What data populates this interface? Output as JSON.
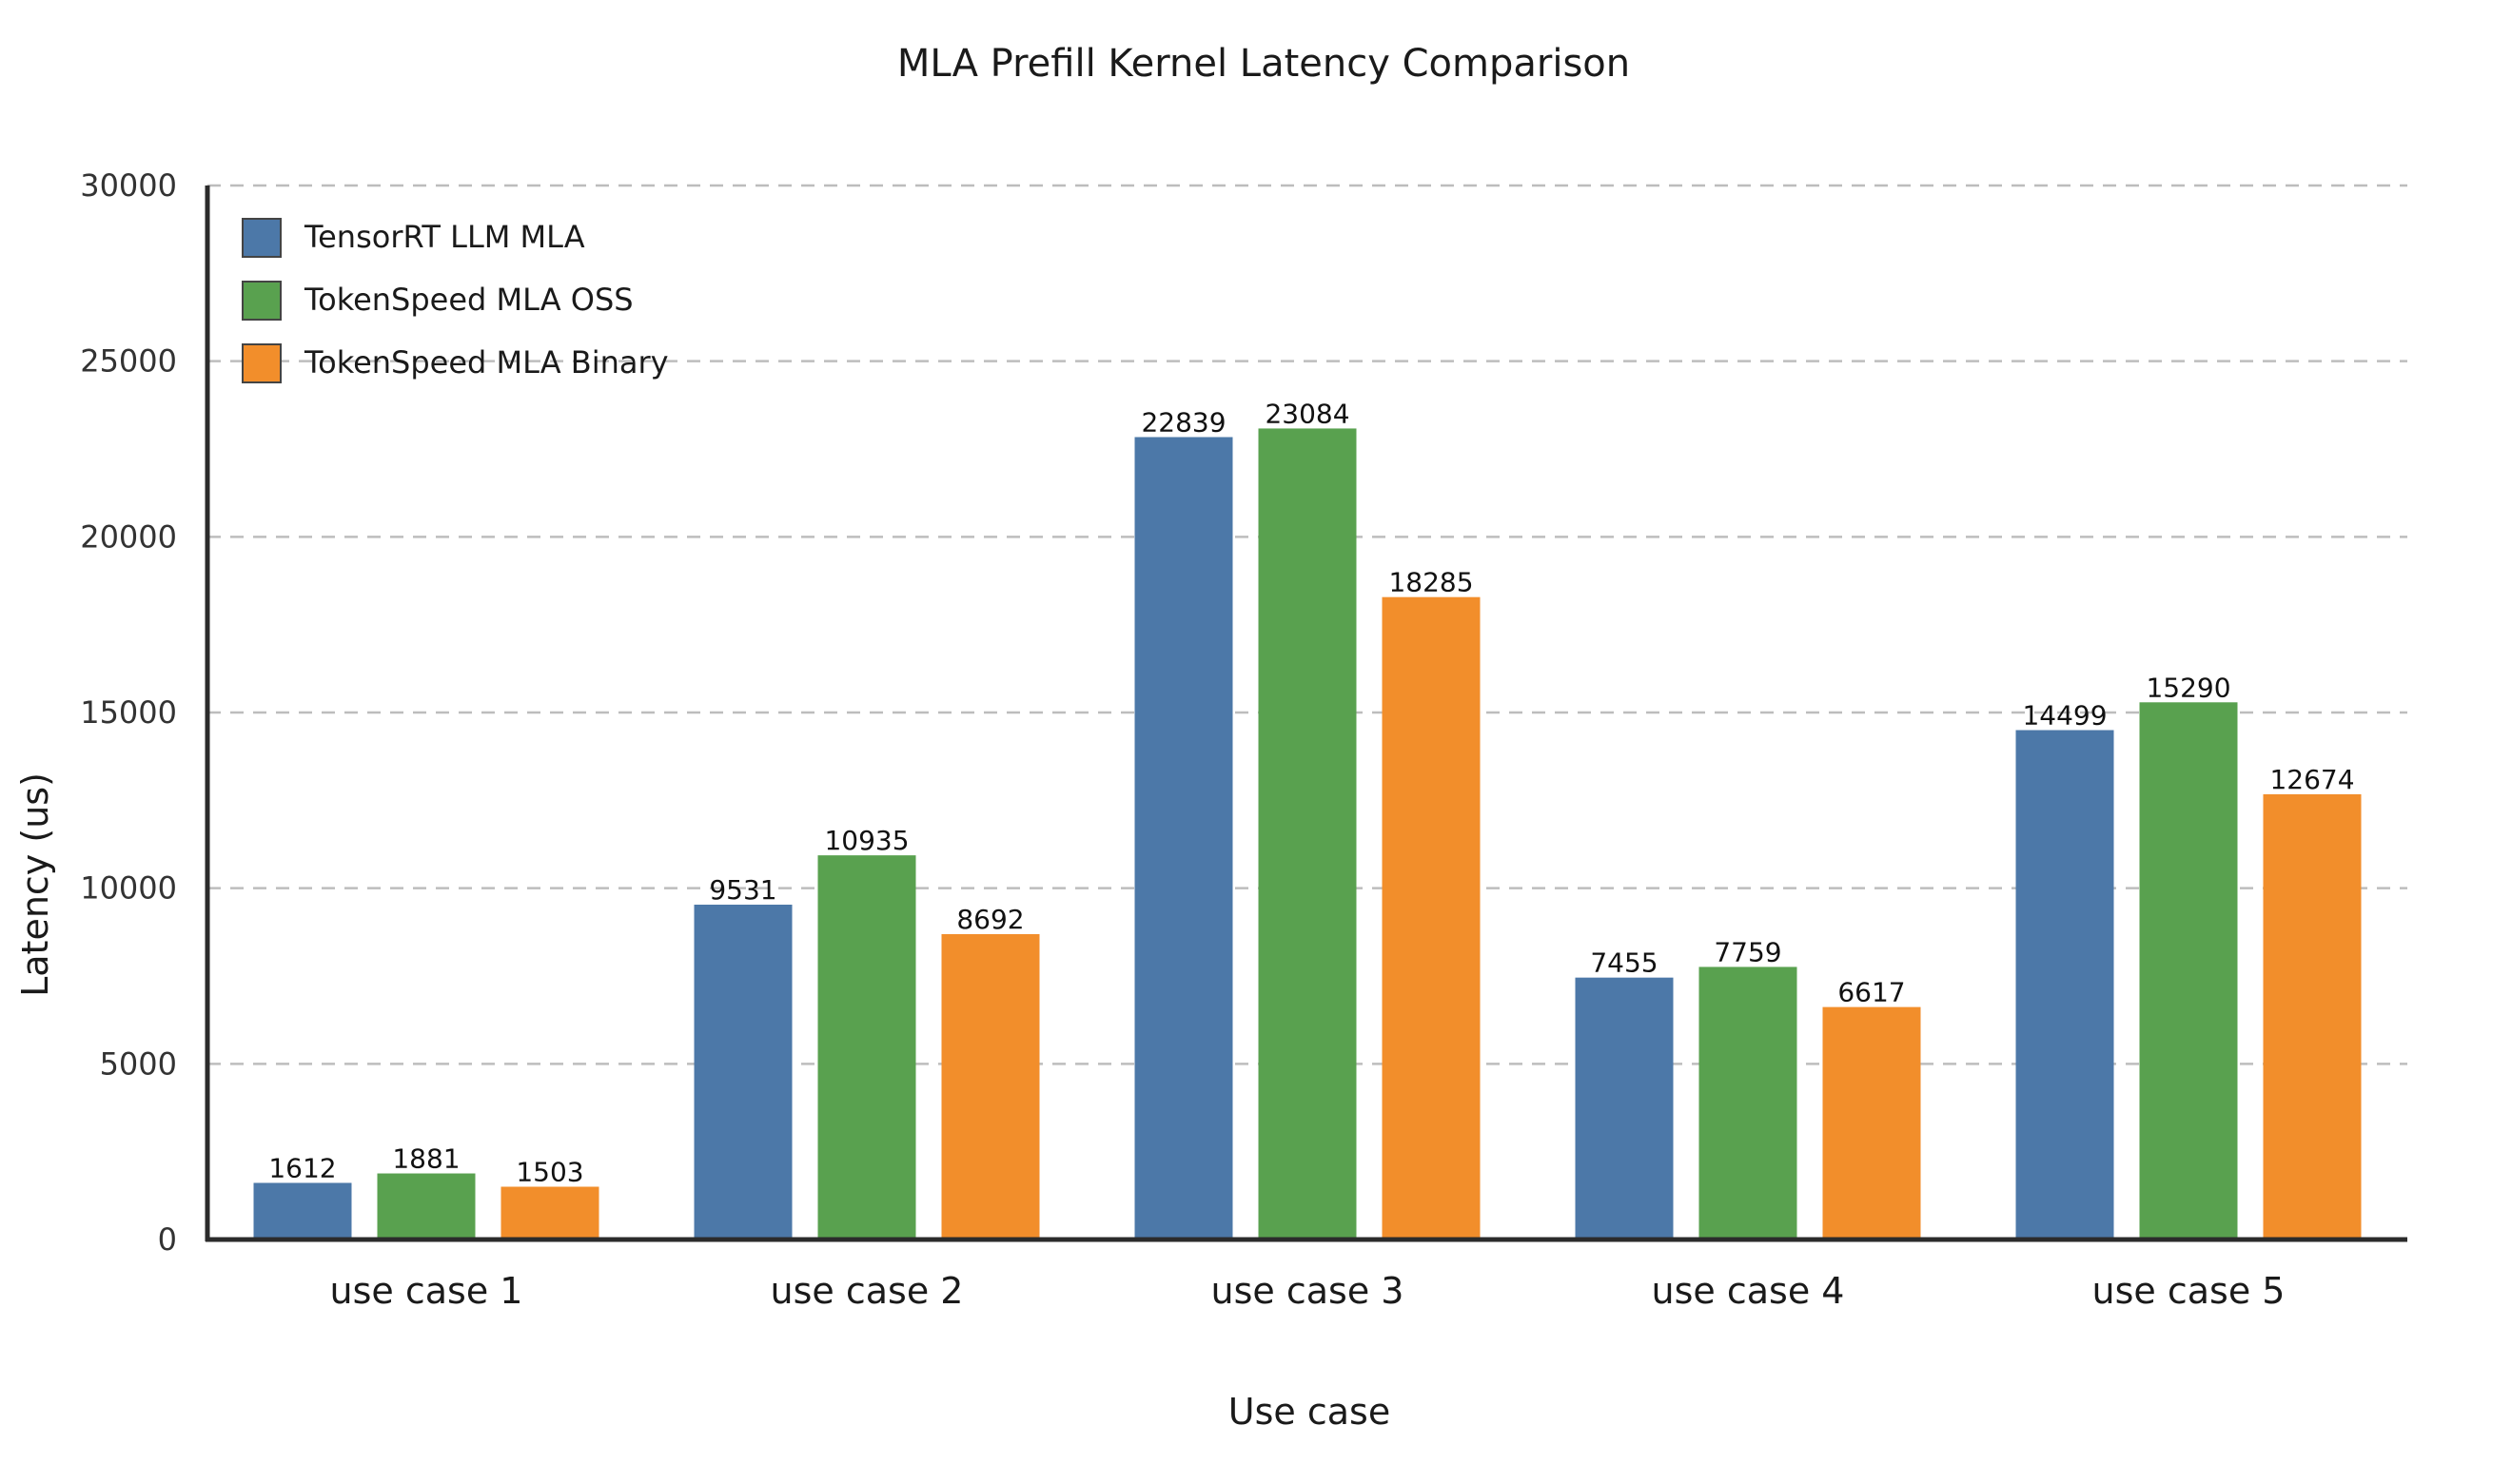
{
  "chart_data": {
    "type": "bar",
    "title": "MLA Prefill Kernel Latency Comparison",
    "xlabel": "Use case",
    "ylabel": "Latency (us)",
    "categories": [
      "use case 1",
      "use case 2",
      "use case 3",
      "use case 4",
      "use case 5"
    ],
    "ylim": [
      0,
      30000
    ],
    "yticks": [
      0,
      5000,
      10000,
      15000,
      20000,
      25000,
      30000
    ],
    "grid": true,
    "legend_position": "top-left",
    "series": [
      {
        "name": "TensorRT LLM MLA",
        "color": "#4c78a8",
        "values": [
          1612,
          9531,
          22839,
          7455,
          14499
        ]
      },
      {
        "name": "TokenSpeed MLA OSS",
        "color": "#59a14f",
        "values": [
          1881,
          10935,
          23084,
          7759,
          15290
        ]
      },
      {
        "name": "TokenSpeed MLA Binary",
        "color": "#f28e2b",
        "values": [
          1503,
          8692,
          18285,
          6617,
          12674
        ]
      }
    ]
  }
}
